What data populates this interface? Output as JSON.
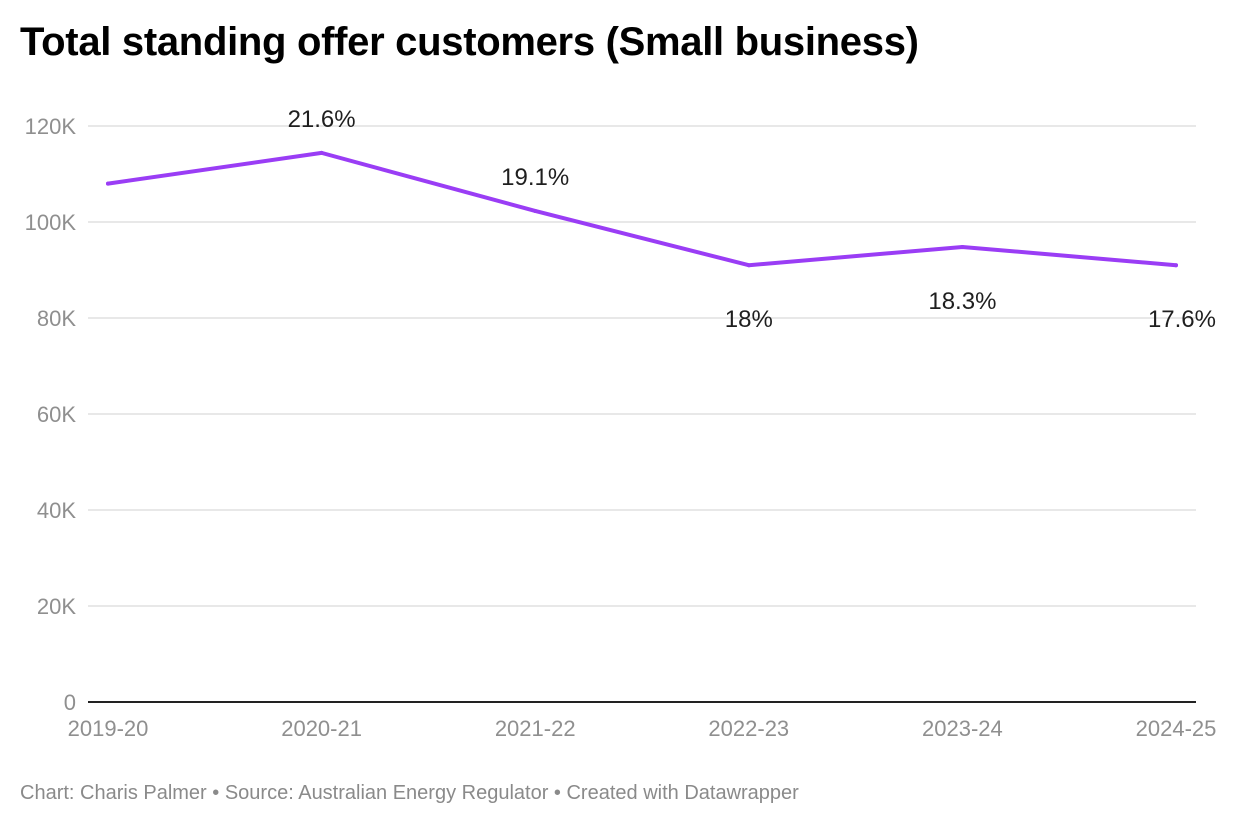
{
  "title": "Total standing offer customers (Small business)",
  "footer": {
    "chart_credit": "Chart: Charis Palmer",
    "source": "Source: Australian Energy Regulator",
    "created_with": "Created with Datawrapper",
    "separator": " • "
  },
  "colors": {
    "line": "#9a3df5",
    "grid": "#e0e0e0",
    "baseline": "#222222",
    "tick_text": "#8f8f8f",
    "label_text": "#1f1f1f"
  },
  "chart_data": {
    "type": "line",
    "categories": [
      "2019-20",
      "2020-21",
      "2021-22",
      "2022-23",
      "2023-24",
      "2024-25"
    ],
    "series": [
      {
        "values": [
          108000,
          114400,
          102300,
          91000,
          94800,
          91000
        ],
        "data_labels": [
          "",
          "21.6%",
          "19.1%",
          "18%",
          "18.3%",
          "17.6%"
        ],
        "label_positions": [
          "",
          "above",
          "above",
          "below",
          "below",
          "below"
        ]
      }
    ],
    "yticks": [
      0,
      20000,
      40000,
      60000,
      80000,
      100000,
      120000
    ],
    "ytick_labels": [
      "0",
      "20K",
      "40K",
      "60K",
      "80K",
      "100K",
      "120K"
    ],
    "ylim": [
      0,
      120000
    ],
    "grid": true,
    "xlabel": "",
    "ylabel": ""
  }
}
